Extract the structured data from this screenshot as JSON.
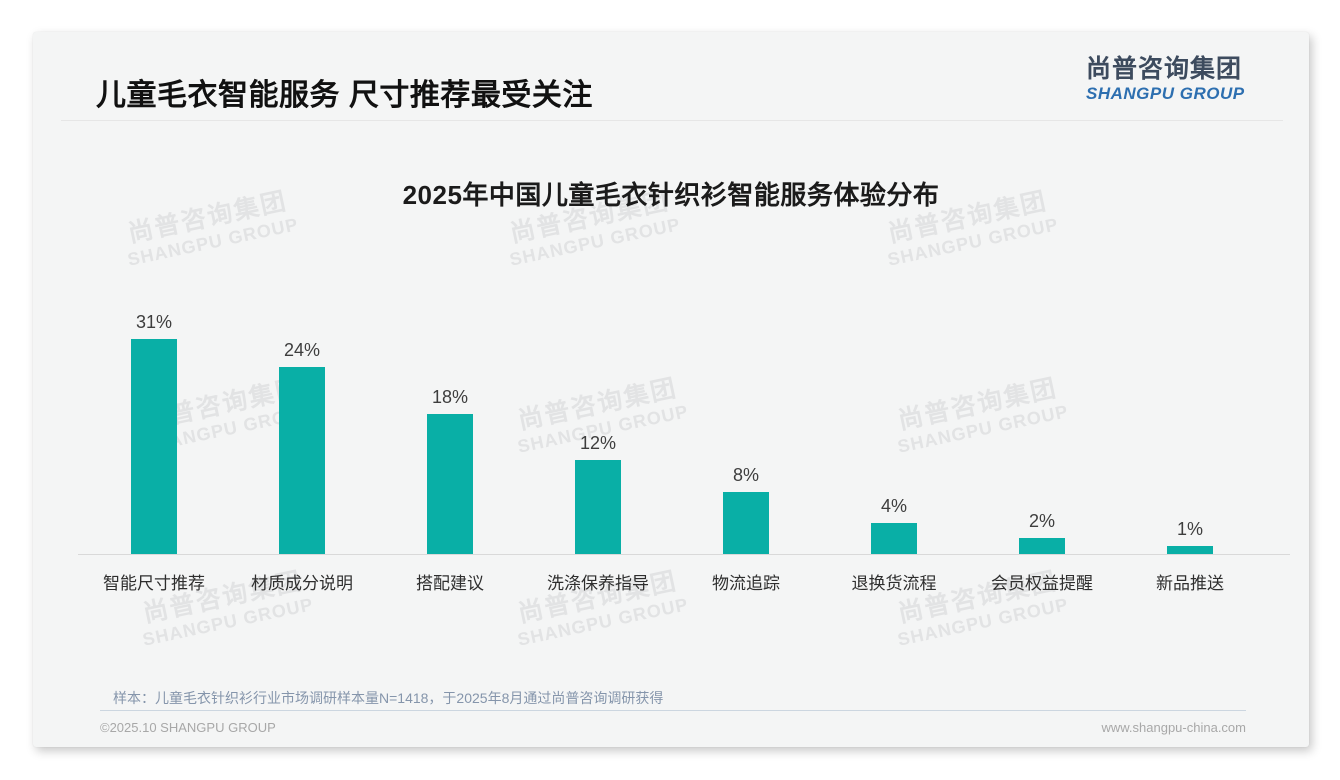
{
  "header": {
    "title": "儿童毛衣智能服务 尺寸推荐最受关注",
    "logo_cn": "尚普咨询集团",
    "logo_en": "SHANGPU GROUP"
  },
  "watermark": {
    "cn": "尚普咨询集团",
    "en": "SHANGPU GROUP"
  },
  "chart_data": {
    "type": "bar",
    "title": "2025年中国儿童毛衣针织衫智能服务体验分布",
    "categories": [
      "智能尺寸推荐",
      "材质成分说明",
      "搭配建议",
      "洗涤保养指导",
      "物流追踪",
      "退换货流程",
      "会员权益提醒",
      "新品推送"
    ],
    "values": [
      31,
      24,
      18,
      12,
      8,
      4,
      2,
      1
    ],
    "unit": "%",
    "bar_color": "#09AFA6",
    "value_label_color": "#3d3d3d",
    "xlabel": "",
    "ylabel": "",
    "ylim": [
      0,
      33
    ],
    "grid": false,
    "legend": false
  },
  "footer": {
    "note": "样本：儿童毛衣针织衫行业市场调研样本量N=1418，于2025年8月通过尚普咨询调研获得",
    "copyright": "©2025.10 SHANGPU GROUP",
    "website": "www.shangpu-china.com"
  }
}
